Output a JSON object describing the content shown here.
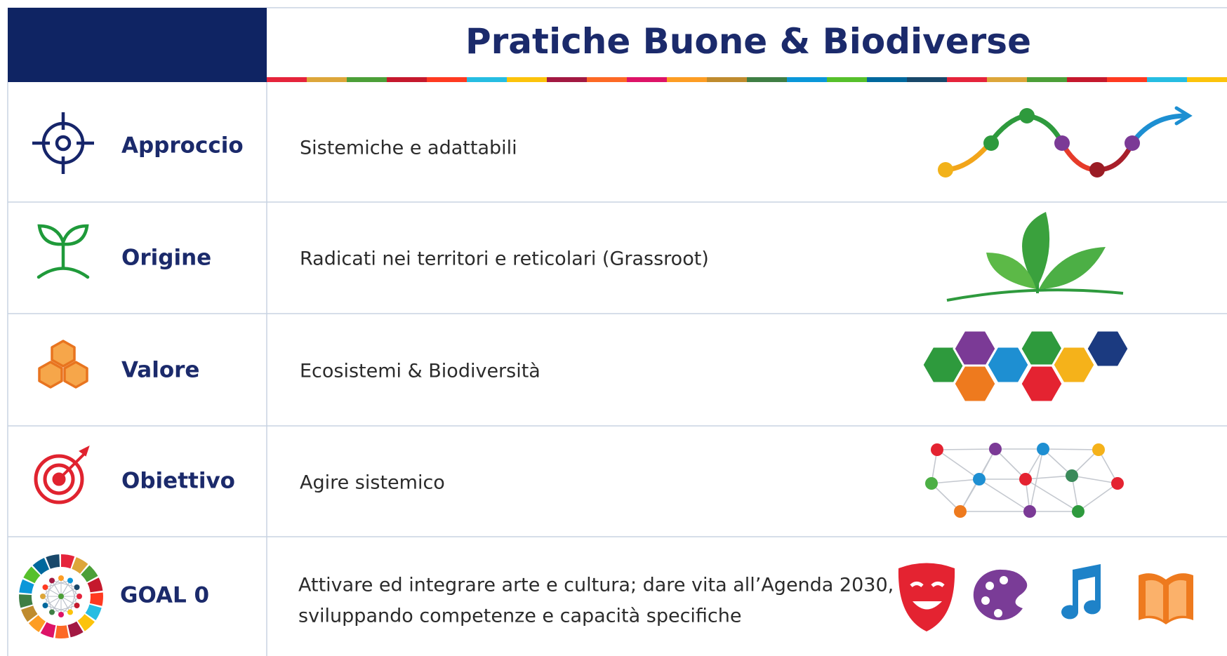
{
  "header": {
    "title": "Pratiche Buone & Biodiverse"
  },
  "rows": [
    {
      "label": "Approccio",
      "description": [
        "Sistemiche e adattabili"
      ]
    },
    {
      "label": "Origine",
      "description": [
        "Radicati nei territori e reticolari (Grassroot)"
      ]
    },
    {
      "label": "Valore",
      "description": [
        "Ecosistemi & Biodiversità"
      ]
    },
    {
      "label": "Obiettivo",
      "description": [
        "Agire sistemico"
      ]
    },
    {
      "label": "GOAL 0",
      "description": [
        "Attivare ed integrare arte e cultura; dare vita all’Agenda 2030,",
        "sviluppando competenze e capacità specifiche"
      ]
    }
  ]
}
